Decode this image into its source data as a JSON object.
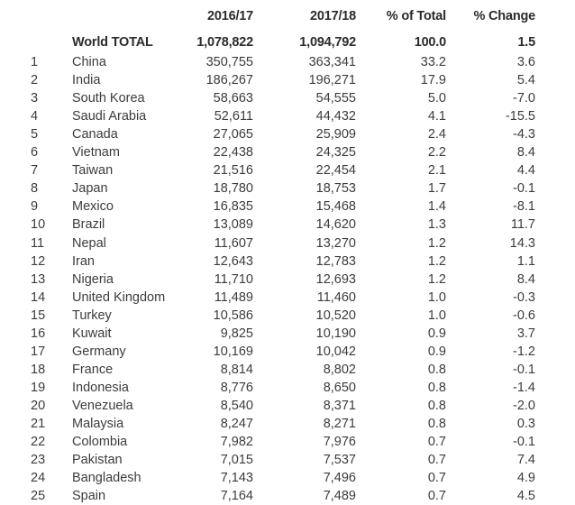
{
  "header": {
    "col_2016": "2016/17",
    "col_2017": "2017/18",
    "col_pct": "% of Total",
    "col_change": "% Change"
  },
  "total": {
    "label": "World TOTAL",
    "v2016": "1,078,822",
    "v2017": "1,094,792",
    "pct": "100.0",
    "change": "1.5"
  },
  "rows": [
    {
      "rank": "1",
      "country": "China",
      "v2016": "350,755",
      "v2017": "363,341",
      "pct": "33.2",
      "change": "3.6"
    },
    {
      "rank": "2",
      "country": "India",
      "v2016": "186,267",
      "v2017": "196,271",
      "pct": "17.9",
      "change": "5.4"
    },
    {
      "rank": "3",
      "country": "South Korea",
      "v2016": "58,663",
      "v2017": "54,555",
      "pct": "5.0",
      "change": "-7.0"
    },
    {
      "rank": "4",
      "country": "Saudi Arabia",
      "v2016": "52,611",
      "v2017": "44,432",
      "pct": "4.1",
      "change": "-15.5"
    },
    {
      "rank": "5",
      "country": "Canada",
      "v2016": "27,065",
      "v2017": "25,909",
      "pct": "2.4",
      "change": "-4.3"
    },
    {
      "rank": "6",
      "country": "Vietnam",
      "v2016": "22,438",
      "v2017": "24,325",
      "pct": "2.2",
      "change": "8.4"
    },
    {
      "rank": "7",
      "country": "Taiwan",
      "v2016": "21,516",
      "v2017": "22,454",
      "pct": "2.1",
      "change": "4.4"
    },
    {
      "rank": "8",
      "country": "Japan",
      "v2016": "18,780",
      "v2017": "18,753",
      "pct": "1.7",
      "change": "-0.1"
    },
    {
      "rank": "9",
      "country": "Mexico",
      "v2016": "16,835",
      "v2017": "15,468",
      "pct": "1.4",
      "change": "-8.1"
    },
    {
      "rank": "10",
      "country": "Brazil",
      "v2016": "13,089",
      "v2017": "14,620",
      "pct": "1.3",
      "change": "11.7"
    },
    {
      "rank": "11",
      "country": "Nepal",
      "v2016": "11,607",
      "v2017": "13,270",
      "pct": "1.2",
      "change": "14.3"
    },
    {
      "rank": "12",
      "country": "Iran",
      "v2016": "12,643",
      "v2017": "12,783",
      "pct": "1.2",
      "change": "1.1"
    },
    {
      "rank": "13",
      "country": "Nigeria",
      "v2016": "11,710",
      "v2017": "12,693",
      "pct": "1.2",
      "change": "8.4"
    },
    {
      "rank": "14",
      "country": "United Kingdom",
      "v2016": "11,489",
      "v2017": "11,460",
      "pct": "1.0",
      "change": "-0.3"
    },
    {
      "rank": "15",
      "country": "Turkey",
      "v2016": "10,586",
      "v2017": "10,520",
      "pct": "1.0",
      "change": "-0.6"
    },
    {
      "rank": "16",
      "country": "Kuwait",
      "v2016": "9,825",
      "v2017": "10,190",
      "pct": "0.9",
      "change": "3.7"
    },
    {
      "rank": "17",
      "country": "Germany",
      "v2016": "10,169",
      "v2017": "10,042",
      "pct": "0.9",
      "change": "-1.2"
    },
    {
      "rank": "18",
      "country": "France",
      "v2016": "8,814",
      "v2017": "8,802",
      "pct": "0.8",
      "change": "-0.1"
    },
    {
      "rank": "19",
      "country": "Indonesia",
      "v2016": "8,776",
      "v2017": "8,650",
      "pct": "0.8",
      "change": "-1.4"
    },
    {
      "rank": "20",
      "country": "Venezuela",
      "v2016": "8,540",
      "v2017": "8,371",
      "pct": "0.8",
      "change": "-2.0"
    },
    {
      "rank": "21",
      "country": "Malaysia",
      "v2016": "8,247",
      "v2017": "8,271",
      "pct": "0.8",
      "change": "0.3"
    },
    {
      "rank": "22",
      "country": "Colombia",
      "v2016": "7,982",
      "v2017": "7,976",
      "pct": "0.7",
      "change": "-0.1"
    },
    {
      "rank": "23",
      "country": "Pakistan",
      "v2016": "7,015",
      "v2017": "7,537",
      "pct": "0.7",
      "change": "7.4"
    },
    {
      "rank": "24",
      "country": "Bangladesh",
      "v2016": "7,143",
      "v2017": "7,496",
      "pct": "0.7",
      "change": "4.9"
    },
    {
      "rank": "25",
      "country": "Spain",
      "v2016": "7,164",
      "v2017": "7,489",
      "pct": "0.7",
      "change": "4.5"
    }
  ]
}
